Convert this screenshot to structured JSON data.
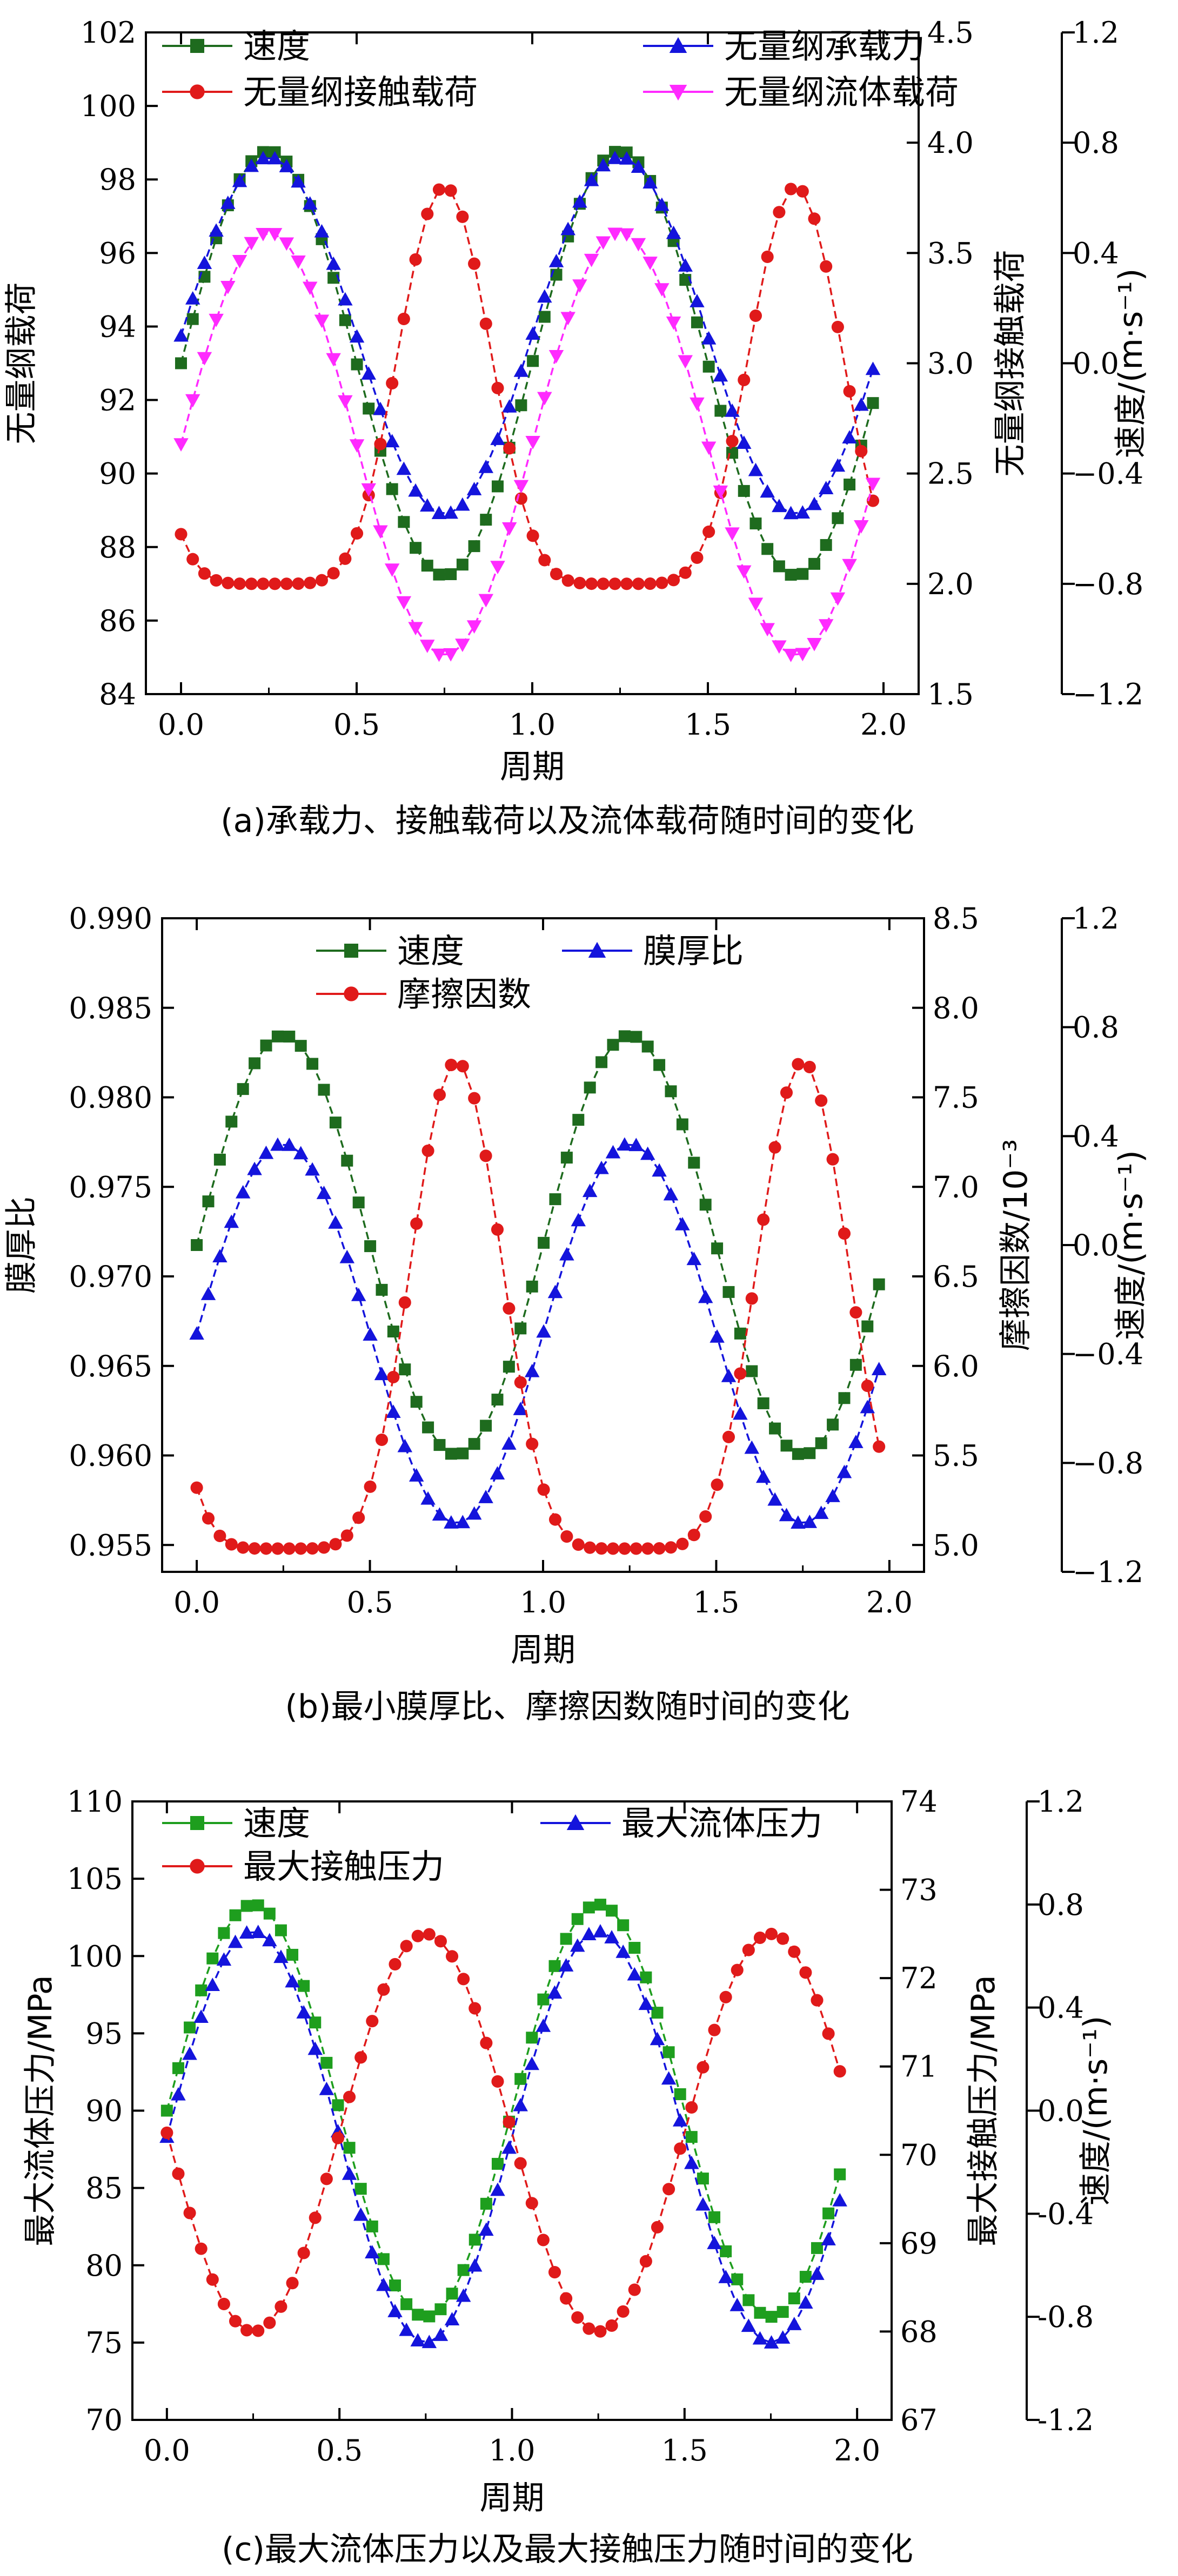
{
  "chart_data": [
    {
      "type": "line",
      "caption": "(a)承载力、接触载荷以及流体载荷随时间的变化",
      "xlabel": "周期",
      "xlim": [
        -0.1,
        2.1
      ],
      "xticks": [
        "0.0",
        "0.5",
        "1.0",
        "1.5",
        "2.0"
      ],
      "axes": {
        "left": {
          "label": "无量纲载荷",
          "ylim": [
            84,
            102
          ],
          "ticks": [
            "84",
            "86",
            "88",
            "90",
            "92",
            "94",
            "96",
            "98",
            "100",
            "102"
          ]
        },
        "right": {
          "label": "无量纲接触载荷",
          "ylim": [
            1.5,
            4.5
          ],
          "ticks": [
            "1.5",
            "2.0",
            "2.5",
            "3.0",
            "3.5",
            "4.0",
            "4.5"
          ]
        },
        "outer": {
          "label": "速度/(m·s⁻¹)",
          "ylim": [
            -1.2,
            1.2
          ],
          "ticks": [
            "−1.2",
            "−0.8",
            "−0.4",
            "0.0",
            "0.4",
            "0.8",
            "1.2"
          ]
        }
      },
      "samples": 60,
      "x_range": [
        0,
        1.97
      ],
      "legend": [
        {
          "name": "速度",
          "color": "#1e6b1e",
          "marker": "square"
        },
        {
          "name": "无量纲承载力",
          "color": "#1414dc",
          "marker": "triangle-up"
        },
        {
          "name": "无量纲接触载荷",
          "color": "#e01a1a",
          "marker": "circle"
        },
        {
          "name": "无量纲流体载荷",
          "color": "#ff2aff",
          "marker": "triangle-down"
        }
      ],
      "series": [
        {
          "name": "速度",
          "axis": "outer",
          "formula": "sin",
          "offset": 0.0,
          "amplitude": 0.77,
          "phase": 0.0,
          "color": "#1e6b1e",
          "marker": "square"
        },
        {
          "name": "无量纲承载力",
          "axis": "left",
          "formula": "sin",
          "offset": 93.75,
          "amplitude": 4.85,
          "phase": 0.0,
          "color": "#1414dc",
          "marker": "triangle-up"
        },
        {
          "name": "无量纲接触载荷",
          "axis": "right",
          "formula": "peak",
          "offset": 2.0,
          "amplitude": 1.8,
          "power": 3,
          "phase": 0.75,
          "color": "#e01a1a",
          "marker": "circle"
        },
        {
          "name": "无量纲流体载荷",
          "axis": "left",
          "formula": "sin",
          "offset": 90.8,
          "amplitude": 5.75,
          "phase": 0.0,
          "color": "#ff2aff",
          "marker": "triangle-down"
        }
      ]
    },
    {
      "type": "line",
      "caption": "(b)最小膜厚比、摩擦因数随时间的变化",
      "xlabel": "周期",
      "xlim": [
        -0.1,
        2.1
      ],
      "xticks": [
        "0.0",
        "0.5",
        "1.0",
        "1.5",
        "2.0"
      ],
      "axes": {
        "left": {
          "label": "膜厚比",
          "ylim": [
            0.9535,
            0.99
          ],
          "ticks": [
            "0.955",
            "0.960",
            "0.965",
            "0.970",
            "0.975",
            "0.980",
            "0.985",
            "0.990"
          ]
        },
        "right": {
          "label": "摩擦因数/10⁻³",
          "ylim": [
            4.85,
            8.5
          ],
          "ticks": [
            "5.0",
            "5.5",
            "6.0",
            "6.5",
            "7.0",
            "7.5",
            "8.0",
            "8.5"
          ]
        },
        "outer": {
          "label": "速度/(m·s⁻¹)",
          "ylim": [
            -1.2,
            1.2
          ],
          "ticks": [
            "−1.2",
            "−0.8",
            "−0.4",
            "0.0",
            "0.4",
            "0.8",
            "1.2"
          ]
        }
      },
      "samples": 60,
      "x_range": [
        0,
        1.97
      ],
      "legend": [
        {
          "name": "速度",
          "color": "#1e6b1e",
          "marker": "square"
        },
        {
          "name": "膜厚比",
          "color": "#1414dc",
          "marker": "triangle-up"
        },
        {
          "name": "摩擦因数",
          "color": "#e01a1a",
          "marker": "circle"
        }
      ],
      "series": [
        {
          "name": "速度",
          "axis": "outer",
          "formula": "sin",
          "offset": 0.0,
          "amplitude": 0.77,
          "phase": 0.0,
          "color": "#1e6b1e",
          "marker": "square"
        },
        {
          "name": "膜厚比",
          "axis": "left",
          "formula": "sin",
          "offset": 0.9668,
          "amplitude": 0.0106,
          "phase": 0.0,
          "color": "#1414dc",
          "marker": "triangle-up"
        },
        {
          "name": "摩擦因数",
          "axis": "right",
          "formula": "peak",
          "offset": 4.98,
          "amplitude": 2.72,
          "power": 3,
          "phase": 0.75,
          "color": "#e01a1a",
          "marker": "circle"
        }
      ]
    },
    {
      "type": "line",
      "caption": "(c)最大流体压力以及最大接触压力随时间的变化",
      "xlabel": "周期",
      "xlim": [
        -0.1,
        2.1
      ],
      "xticks": [
        "0.0",
        "0.5",
        "1.0",
        "1.5",
        "2.0"
      ],
      "axes": {
        "left": {
          "label": "最大流体压力/MPa",
          "ylim": [
            70,
            110
          ],
          "ticks": [
            "70",
            "75",
            "80",
            "85",
            "90",
            "95",
            "100",
            "105",
            "110"
          ]
        },
        "right": {
          "label": "最大接触压力/MPa",
          "ylim": [
            67,
            74
          ],
          "ticks": [
            "67",
            "68",
            "69",
            "70",
            "71",
            "72",
            "73",
            "74"
          ]
        },
        "outer": {
          "label": "速度/(m·s⁻¹)",
          "ylim": [
            -1.2,
            1.2
          ],
          "ticks": [
            "-1.2",
            "-0.8",
            "-0.4",
            "0.0",
            "0.4",
            "0.8",
            "1.2"
          ]
        }
      },
      "samples": 60,
      "x_range": [
        0,
        1.95
      ],
      "legend": [
        {
          "name": "速度",
          "color": "#1e9e1e",
          "marker": "square"
        },
        {
          "name": "最大流体压力",
          "color": "#1414dc",
          "marker": "triangle-up"
        },
        {
          "name": "最大接触压力",
          "color": "#e01a1a",
          "marker": "circle"
        }
      ],
      "series": [
        {
          "name": "速度",
          "axis": "outer",
          "formula": "sin",
          "offset": 0.0,
          "amplitude": 0.8,
          "phase": 0.0,
          "color": "#1e9e1e",
          "marker": "square"
        },
        {
          "name": "最大流体压力",
          "axis": "left",
          "formula": "sin",
          "offset": 88.3,
          "amplitude": 13.3,
          "phase": 0.0,
          "color": "#1414dc",
          "marker": "triangle-up"
        },
        {
          "name": "最大接触压力",
          "axis": "right",
          "formula": "sin",
          "offset": 70.25,
          "amplitude": 2.25,
          "phase": 0.5,
          "color": "#e01a1a",
          "marker": "circle"
        }
      ]
    }
  ]
}
